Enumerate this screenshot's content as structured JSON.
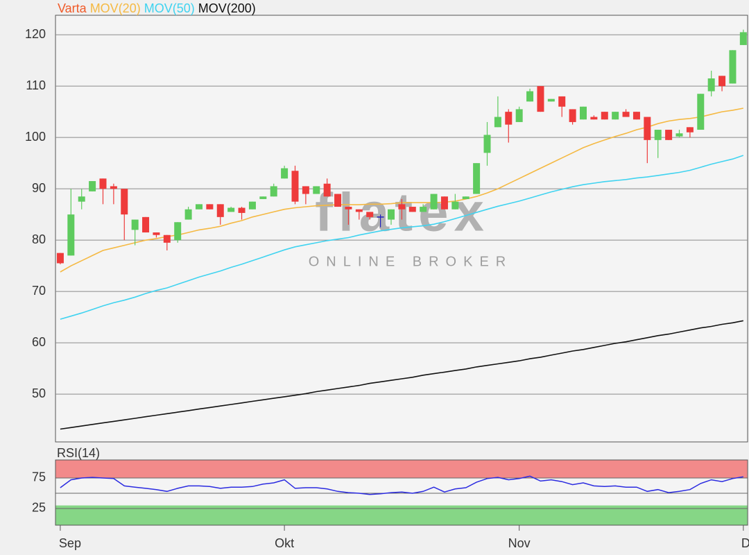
{
  "chart_data": [
    {
      "type": "candlestick",
      "name": "Varta",
      "name_color": "#f05a28",
      "up_color": "#5ecb5e",
      "down_color": "#ee3b3b",
      "doji_color": "#2020c0",
      "watermark": "flatex",
      "watermark_sub": "ONLINE BROKER",
      "x": [
        0,
        1,
        2,
        3,
        4,
        5,
        6,
        7,
        8,
        9,
        10,
        11,
        12,
        13,
        14,
        15,
        16,
        17,
        18,
        19,
        20,
        21,
        22,
        23,
        24,
        25,
        26,
        27,
        28,
        29,
        30,
        31,
        32,
        33,
        34,
        35,
        36,
        37,
        38,
        39,
        40,
        41,
        42,
        43,
        44,
        45,
        46,
        47,
        48,
        49,
        50,
        51,
        52,
        53,
        54,
        55,
        56,
        57,
        58,
        59,
        60,
        61,
        62,
        63,
        64
      ],
      "open": [
        77.5,
        77,
        87.5,
        89.5,
        92,
        90.5,
        90,
        82,
        84.5,
        81.5,
        81,
        80,
        84,
        86,
        87,
        87,
        85.5,
        86.3,
        86,
        88,
        88.5,
        92,
        93.5,
        90.5,
        89,
        91,
        89,
        86.5,
        86,
        85.5,
        84.5,
        84,
        87,
        86.5,
        85.5,
        86,
        88.5,
        86,
        88,
        89,
        97,
        102,
        105,
        103,
        107,
        110,
        107,
        108,
        105.5,
        103.5,
        104,
        105,
        103.5,
        105,
        105,
        104,
        99.5,
        101.5,
        100.2,
        102,
        101.5,
        109,
        112,
        110.5,
        118
      ],
      "high": [
        77.5,
        90,
        90,
        91.5,
        92,
        91,
        90,
        84,
        84.5,
        81.5,
        81,
        83.5,
        86.5,
        87,
        87,
        87,
        86.5,
        86.5,
        87.5,
        88.5,
        91,
        94.5,
        94.5,
        90.5,
        90.5,
        92,
        89,
        86.5,
        86,
        85.5,
        85,
        86,
        88,
        86.5,
        87,
        89,
        88.5,
        89,
        88.5,
        95,
        103,
        108,
        105.5,
        106,
        109.5,
        110,
        107.5,
        108,
        105.5,
        106,
        104.3,
        105,
        105,
        105.5,
        105,
        104,
        101.5,
        101.5,
        101.5,
        102,
        108.5,
        113,
        112,
        117,
        121
      ],
      "low": [
        75.3,
        77,
        86,
        89.5,
        87,
        87,
        80,
        79,
        81.5,
        80.5,
        78,
        79.5,
        84,
        86,
        86,
        83,
        85.5,
        84,
        86,
        88,
        88.5,
        92,
        87,
        87,
        89,
        88.5,
        86.5,
        83,
        84,
        84,
        82.5,
        83,
        84,
        85.5,
        85.5,
        86,
        86,
        86,
        88,
        89,
        94.5,
        102,
        99,
        103,
        107,
        105,
        107,
        104,
        102.5,
        103.5,
        103.5,
        103.5,
        103.5,
        104,
        103.5,
        95,
        96,
        99.5,
        100,
        100,
        101.5,
        108,
        109,
        110.5,
        118
      ],
      "close": [
        75.5,
        85,
        88.5,
        91.5,
        90,
        90,
        85,
        84,
        81.5,
        81,
        79.5,
        83.5,
        86,
        87,
        86,
        84.5,
        86.3,
        85.3,
        87.5,
        88.5,
        90.5,
        94,
        87.5,
        89,
        90.5,
        88.5,
        86.5,
        86,
        85.5,
        84.5,
        84.5,
        86,
        86,
        85.5,
        86.5,
        89,
        86,
        87.5,
        88.5,
        95,
        100.5,
        104,
        102.5,
        105.5,
        109,
        105,
        107.5,
        106,
        103,
        106,
        103.5,
        103.5,
        105,
        104,
        103.5,
        99.5,
        101.5,
        99.5,
        100.8,
        101,
        108.5,
        111.5,
        110,
        117,
        120.5
      ],
      "series": [
        {
          "name": "MOV(20)",
          "color": "#f5b942",
          "values": [
            73.8,
            75,
            76,
            77,
            78,
            78.5,
            79,
            79.5,
            80,
            80.3,
            80.7,
            81,
            81.5,
            82,
            82.3,
            82.7,
            83.3,
            83.8,
            84.5,
            85,
            85.5,
            86,
            86.3,
            86.5,
            86.7,
            86.8,
            86.9,
            86.9,
            86.9,
            87,
            87,
            87.1,
            87.3,
            87.3,
            87.3,
            87.3,
            87.4,
            87.6,
            88,
            88.5,
            89.2,
            90,
            91,
            92,
            93,
            94,
            95,
            96,
            97,
            98,
            98.8,
            99.5,
            100.2,
            100.8,
            101.5,
            102,
            102.7,
            103.2,
            103.5,
            103.7,
            104,
            104.5,
            105,
            105.3,
            105.7
          ]
        },
        {
          "name": "MOV(50)",
          "color": "#3fd3f0",
          "values": [
            64.6,
            65.2,
            65.8,
            66.5,
            67.2,
            67.8,
            68.3,
            68.9,
            69.6,
            70.2,
            70.7,
            71.4,
            72.1,
            72.8,
            73.4,
            74,
            74.7,
            75.3,
            76,
            76.7,
            77.4,
            78.1,
            78.7,
            79.1,
            79.5,
            79.9,
            80.2,
            80.5,
            81,
            81.4,
            81.8,
            82.1,
            82.4,
            82.6,
            82.8,
            83.1,
            83.6,
            84.2,
            84.8,
            85.4,
            86,
            86.6,
            87.1,
            87.6,
            88.2,
            88.8,
            89.4,
            89.9,
            90.4,
            90.8,
            91.1,
            91.4,
            91.6,
            91.8,
            92.1,
            92.3,
            92.6,
            92.9,
            93.2,
            93.6,
            94.2,
            94.8,
            95.3,
            95.8,
            96.5
          ]
        },
        {
          "name": "MOV(200)",
          "color": "#111111",
          "values": [
            43.2,
            43.5,
            43.8,
            44.1,
            44.4,
            44.7,
            45,
            45.3,
            45.6,
            45.9,
            46.2,
            46.5,
            46.8,
            47.1,
            47.4,
            47.7,
            48,
            48.3,
            48.6,
            48.9,
            49.2,
            49.5,
            49.8,
            50.1,
            50.5,
            50.8,
            51.1,
            51.4,
            51.7,
            52.1,
            52.4,
            52.7,
            53,
            53.3,
            53.7,
            54,
            54.3,
            54.6,
            54.9,
            55.3,
            55.6,
            55.9,
            56.2,
            56.5,
            56.9,
            57.2,
            57.6,
            58,
            58.4,
            58.7,
            59.1,
            59.5,
            59.9,
            60.2,
            60.6,
            61,
            61.4,
            61.7,
            62.1,
            62.5,
            62.9,
            63.2,
            63.6,
            63.9,
            64.3
          ]
        }
      ],
      "xlim": [
        -0.45,
        64.4
      ],
      "ylim": [
        40.7,
        123.8
      ],
      "yticks": [
        50,
        60,
        70,
        80,
        90,
        100,
        110,
        120
      ],
      "grid": true
    },
    {
      "type": "line",
      "title": "RSI(14)",
      "title_color": "#2020c0",
      "upper_band": 75,
      "upper_color": "#f28a8a",
      "lower_band": 30,
      "lower_color": "#86d686",
      "midline": 50,
      "x": [
        0,
        1,
        2,
        3,
        4,
        5,
        6,
        7,
        8,
        9,
        10,
        11,
        12,
        13,
        14,
        15,
        16,
        17,
        18,
        19,
        20,
        21,
        22,
        23,
        24,
        25,
        26,
        27,
        28,
        29,
        30,
        31,
        32,
        33,
        34,
        35,
        36,
        37,
        38,
        39,
        40,
        41,
        42,
        43,
        44,
        45,
        46,
        47,
        48,
        49,
        50,
        51,
        52,
        53,
        54,
        55,
        56,
        57,
        58,
        59,
        60,
        61,
        62,
        63,
        64
      ],
      "series": [
        {
          "name": "RSI(14)",
          "color": "#2a2ae0",
          "values": [
            59,
            72,
            75,
            76,
            75,
            74,
            62,
            60,
            58,
            56,
            53,
            58,
            62,
            62,
            61,
            58,
            60,
            60,
            61,
            65,
            67,
            72,
            58,
            59,
            59,
            57,
            53,
            51,
            50,
            48,
            49,
            51,
            52,
            50,
            53,
            60,
            52,
            57,
            59,
            68,
            74,
            76,
            72,
            74,
            78,
            70,
            72,
            69,
            64,
            67,
            62,
            61,
            62,
            60,
            60,
            53,
            56,
            51,
            53,
            56,
            66,
            72,
            69,
            74,
            77
          ]
        }
      ],
      "xlim": [
        -0.45,
        64.4
      ],
      "ylim": [
        -2.3,
        104.5
      ],
      "yticks": [
        25,
        75
      ],
      "xticks": [
        {
          "value": 0,
          "label": "Sep"
        },
        {
          "value": 21,
          "label": "Okt"
        },
        {
          "value": 43,
          "label": "Nov"
        },
        {
          "value": 64,
          "label": "D"
        }
      ]
    }
  ]
}
